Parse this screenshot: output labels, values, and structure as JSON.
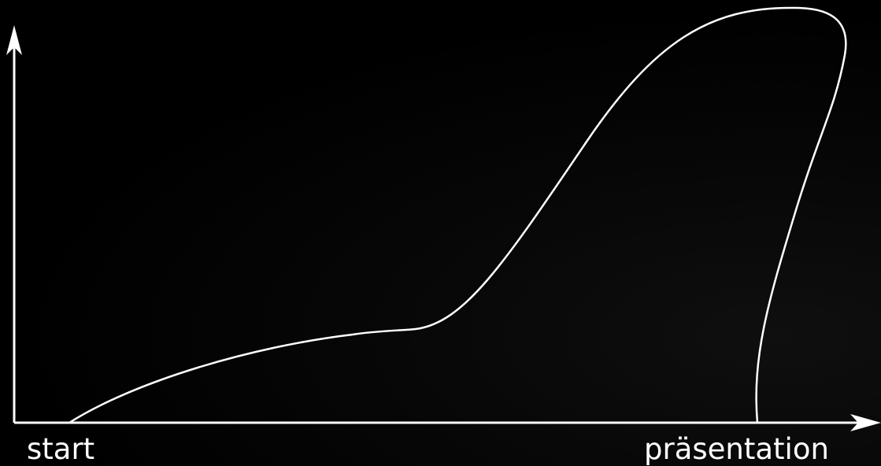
{
  "diagram": {
    "start_label": "start",
    "end_label": "präsentation",
    "colors": {
      "background": "#000000",
      "stroke": "#ffffff"
    }
  }
}
